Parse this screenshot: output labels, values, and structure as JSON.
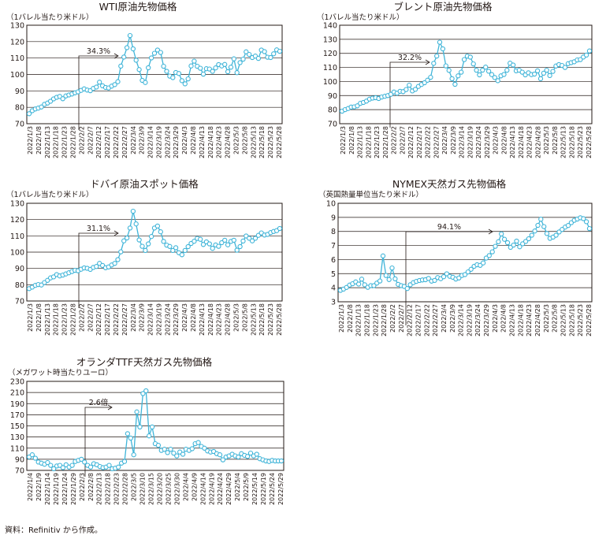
{
  "source_note": "資料：Refinitiv から作成。",
  "style": {
    "line_color": "#3fb4d8",
    "marker_fill": "#ffffff",
    "frame_color": "#231815",
    "grid_color": "#231815"
  },
  "chart_data": [
    {
      "type": "line",
      "title": "WTI原油先物価格",
      "unit": "（1バレル当たり米ドル）",
      "ylim": [
        70,
        130
      ],
      "yticks": [
        "70",
        "80",
        "90",
        "100",
        "110",
        "120",
        "130"
      ],
      "grid": true,
      "xticks": [
        "2022/1/3",
        "2022/1/8",
        "2022/1/13",
        "2022/1/18",
        "2022/1/23",
        "2022/1/28",
        "2022/2/2",
        "2022/2/7",
        "2022/2/12",
        "2022/2/17",
        "2022/2/22",
        "2022/2/27",
        "2022/3/4",
        "2022/3/9",
        "2022/3/14",
        "2022/3/19",
        "2022/3/24",
        "2022/3/29",
        "2022/4/3",
        "2022/4/8",
        "2022/4/13",
        "2022/4/18",
        "2022/4/23",
        "2022/4/28",
        "2022/5/3",
        "2022/5/8",
        "2022/5/13",
        "2022/5/18",
        "2022/5/23",
        "2022/5/28"
      ],
      "annotation": {
        "text": "34.3%"
      },
      "series": [
        {
          "values": [
            76.1,
            77.9,
            79,
            79.5,
            80.2,
            81.8,
            82.6,
            83.7,
            85.1,
            86.1,
            86.6,
            85.2,
            86.9,
            87.5,
            88.1,
            88.8,
            89.4,
            90.3,
            91.2,
            90.5,
            90.1,
            91.5,
            92.3,
            95.3,
            93.1,
            92.1,
            91.8,
            92.9,
            93.8,
            95.6,
            105.1,
            110.6,
            116.3,
            123.7,
            115.6,
            108.7,
            103,
            96.4,
            95.1,
            104.1,
            110.1,
            112.9,
            114.9,
            113.4,
            105,
            101.9,
            99,
            98.1,
            101.2,
            100.6,
            96.2,
            94.3,
            97.3,
            105.2,
            108.1,
            105,
            103.8,
            100.2,
            103.5,
            103.3,
            101.9,
            104,
            106,
            105.2,
            106.1,
            101.7,
            104.4,
            109.5,
            101.1,
            107.2,
            109.3,
            113.8,
            112.2,
            110.3,
            111.2,
            109.8,
            114.9,
            113.9,
            110.5,
            110.3,
            112.6,
            115,
            114.1
          ]
        }
      ]
    },
    {
      "type": "line",
      "title": "ブレント原油先物価格",
      "unit": "（1バレル当たり米ドル）",
      "ylim": [
        70,
        140
      ],
      "yticks": [
        "70",
        "80",
        "90",
        "100",
        "110",
        "120",
        "130",
        "140"
      ],
      "grid": true,
      "xticks": [
        "2022/1/3",
        "2022/1/8",
        "2022/1/13",
        "2022/1/18",
        "2022/1/23",
        "2022/1/28",
        "2022/2/2",
        "2022/2/7",
        "2022/2/12",
        "2022/2/17",
        "2022/2/22",
        "2022/2/27",
        "2022/3/4",
        "2022/3/9",
        "2022/3/14",
        "2022/3/19",
        "2022/3/24",
        "2022/3/29",
        "2022/4/3",
        "2022/4/8",
        "2022/4/13",
        "2022/4/18",
        "2022/4/23",
        "2022/4/28",
        "2022/5/3",
        "2022/5/8",
        "2022/5/13",
        "2022/5/18",
        "2022/5/23",
        "2022/5/28"
      ],
      "annotation": {
        "text": "32.2%"
      },
      "series": [
        {
          "values": [
            78.9,
            80,
            80.8,
            81.8,
            82,
            82.7,
            84.5,
            85.1,
            86.1,
            87.5,
            88.2,
            88.5,
            87.9,
            89,
            89.5,
            90,
            90.9,
            92.5,
            91.7,
            93,
            92.8,
            94.3,
            97.4,
            93.3,
            94.4,
            96.5,
            97.9,
            99.1,
            100.9,
            103,
            112.9,
            118.1,
            127.9,
            123.2,
            111.1,
            107.9,
            102,
            98,
            104,
            106.6,
            115.6,
            118,
            117.3,
            112.5,
            108,
            104.7,
            108.1,
            110.2,
            107.3,
            104.9,
            102.8,
            100.6,
            104,
            105,
            108,
            113,
            111.7,
            107.6,
            108,
            106.6,
            104.7,
            106.2,
            104.9,
            105.3,
            107.6,
            102,
            105.9,
            108,
            104.2,
            107.2,
            111,
            112,
            111.4,
            110,
            112.7,
            113.4,
            114,
            115.3,
            115.6,
            117.4,
            118.8,
            121.7
          ]
        }
      ]
    },
    {
      "type": "line",
      "title": "ドバイ原油スポット価格",
      "unit": "（1バレル当たり米ドル）",
      "ylim": [
        70,
        130
      ],
      "yticks": [
        "70",
        "80",
        "90",
        "100",
        "110",
        "120",
        "130"
      ],
      "grid": true,
      "xticks": [
        "2022/1/3",
        "2022/1/8",
        "2022/1/13",
        "2022/1/18",
        "2022/1/23",
        "2022/1/28",
        "2022/2/2",
        "2022/2/7",
        "2022/2/12",
        "2022/2/17",
        "2022/2/22",
        "2022/2/27",
        "2022/3/4",
        "2022/3/9",
        "2022/3/14",
        "2022/3/19",
        "2022/3/24",
        "2022/3/29",
        "2022/4/3",
        "2022/4/8",
        "2022/4/13",
        "2022/4/18",
        "2022/4/23",
        "2022/4/28",
        "2022/5/3",
        "2022/5/8",
        "2022/5/13",
        "2022/5/18",
        "2022/5/23",
        "2022/5/28"
      ],
      "annotation": {
        "text": "31.1%"
      },
      "series": [
        {
          "values": [
            77.6,
            78.5,
            79.6,
            80.1,
            79.8,
            81.3,
            82.7,
            84.2,
            84.8,
            86.2,
            85.4,
            85.9,
            86.6,
            87.3,
            88.1,
            88.8,
            88.6,
            89.5,
            90.3,
            90.1,
            89.4,
            90.6,
            91.2,
            93.1,
            91.8,
            90.4,
            90.9,
            92.1,
            93.1,
            95.4,
            100.2,
            106.9,
            108.7,
            114.8,
            125.1,
            117.3,
            107.5,
            103.6,
            101,
            105.1,
            109.6,
            114.8,
            116,
            112.5,
            106.6,
            104.3,
            103.5,
            101,
            102.7,
            99.6,
            98.4,
            101,
            103.4,
            105.3,
            106.7,
            108.4,
            107.9,
            104.7,
            106.3,
            105.1,
            102.3,
            104.4,
            103.6,
            105.8,
            107.3,
            104.5,
            106.6,
            107.3,
            101.2,
            103.4,
            106.8,
            109.9,
            108.5,
            106.9,
            108.5,
            110.3,
            111.8,
            110.5,
            110.9,
            112,
            112.7,
            113.2,
            114.5
          ]
        }
      ]
    },
    {
      "type": "line",
      "title": "NYMEX天然ガス先物価格",
      "unit": "（英国熱量単位当たり米ドル）",
      "ylim": [
        3,
        10
      ],
      "yticks": [
        "3",
        "4",
        "5",
        "6",
        "7",
        "8",
        "9",
        "10"
      ],
      "grid": true,
      "xticks": [
        "2022/1/3",
        "2022/1/8",
        "2022/1/13",
        "2022/1/18",
        "2022/1/23",
        "2022/1/28",
        "2022/2/2",
        "2022/2/7",
        "2022/2/12",
        "2022/2/17",
        "2022/2/22",
        "2022/2/27",
        "2022/3/4",
        "2022/3/9",
        "2022/3/14",
        "2022/3/19",
        "2022/3/24",
        "2022/3/29",
        "2022/4/3",
        "2022/4/8",
        "2022/4/13",
        "2022/4/18",
        "2022/4/23",
        "2022/4/28",
        "2022/5/3",
        "2022/5/8",
        "2022/5/13",
        "2022/5/18",
        "2022/5/23",
        "2022/5/28"
      ],
      "annotation": {
        "text": "94.1%"
      },
      "series": [
        {
          "values": [
            3.81,
            3.9,
            4.02,
            4.19,
            4.28,
            4.41,
            4.26,
            4.61,
            4.21,
            4.03,
            4.15,
            4.15,
            4.33,
            4.48,
            6.26,
            4.87,
            4.58,
            5.4,
            4.63,
            4.24,
            4.15,
            4.09,
            3.94,
            4.21,
            4.36,
            4.45,
            4.51,
            4.55,
            4.57,
            4.66,
            4.47,
            4.52,
            4.72,
            4.64,
            4.78,
            4.99,
            4.81,
            4.74,
            4.62,
            4.69,
            4.87,
            4.93,
            5.12,
            5.31,
            5.52,
            5.63,
            5.59,
            5.76,
            6.11,
            6.28,
            6.55,
            6.94,
            7.27,
            7.82,
            7.44,
            7.2,
            6.87,
            7.03,
            7.31,
            6.91,
            7.12,
            7.29,
            7.48,
            7.73,
            8.03,
            8.43,
            8.87,
            8.34,
            7.85,
            7.51,
            7.6,
            7.73,
            7.96,
            8.14,
            8.31,
            8.42,
            8.62,
            8.79,
            8.88,
            8.97,
            8.91,
            8.69,
            8.2
          ]
        }
      ]
    },
    {
      "type": "line",
      "title": "オランダTTF天然ガス先物価格",
      "unit": "（メガワット時当たりユーロ）",
      "ylim": [
        70,
        230
      ],
      "yticks": [
        "70",
        "90",
        "110",
        "130",
        "150",
        "170",
        "190",
        "210",
        "230"
      ],
      "grid": true,
      "xticks": [
        "2022/1/4",
        "2022/1/9",
        "2022/1/14",
        "2022/1/19",
        "2022/1/24",
        "2022/1/29",
        "2022/2/3",
        "2022/2/8",
        "2022/2/13",
        "2022/2/18",
        "2022/2/23",
        "2022/2/28",
        "2022/3/5",
        "2022/3/10",
        "2022/3/15",
        "2022/3/20",
        "2022/3/25",
        "2022/3/30",
        "2022/4/4",
        "2022/4/9",
        "2022/4/14",
        "2022/4/19",
        "2022/4/24",
        "2022/4/29",
        "2022/5/4",
        "2022/5/9",
        "2022/5/14",
        "2022/5/19",
        "2022/5/24",
        "2022/5/29"
      ],
      "annotation": {
        "text": "2.6倍"
      },
      "series": [
        {
          "values": [
            94,
            98,
            92,
            85,
            83,
            81,
            84,
            79,
            73,
            78,
            79,
            75,
            80,
            76,
            79,
            86,
            88,
            90,
            85,
            79,
            76,
            82,
            80,
            77,
            75,
            76,
            79,
            73,
            74,
            76,
            83,
            86,
            136,
            128,
            98,
            175,
            148,
            208,
            213,
            132,
            148,
            118,
            115,
            106,
            108,
            102,
            108,
            101,
            96,
            103,
            99,
            108,
            106,
            109,
            118,
            120,
            113,
            110,
            105,
            103,
            104,
            100,
            98,
            89,
            94,
            96,
            99,
            96,
            94,
            100,
            97,
            95,
            101,
            96,
            99,
            91,
            89,
            87,
            86,
            88,
            87,
            87,
            87
          ]
        }
      ]
    }
  ]
}
